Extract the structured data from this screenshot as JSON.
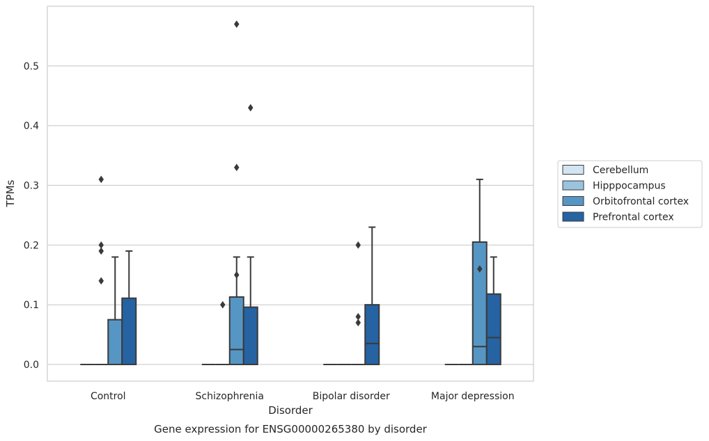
{
  "chart_data": {
    "type": "box",
    "title": "",
    "caption": "Gene expression for ENSG00000265380 by disorder",
    "xlabel": "Disorder",
    "ylabel": "TPMs",
    "ylim": [
      -0.028,
      0.6
    ],
    "yticks": [
      0.0,
      0.1,
      0.2,
      0.3,
      0.4,
      0.5
    ],
    "ytick_labels": [
      "0.0",
      "0.1",
      "0.2",
      "0.3",
      "0.4",
      "0.5"
    ],
    "grid": "horizontal",
    "legend_position": "right",
    "categories": [
      "Control",
      "Schizophrenia",
      "Bipolar disorder",
      "Major depression"
    ],
    "series": [
      {
        "name": "Cerebellum",
        "color": "#d3e4f3",
        "boxes": [
          {
            "q1": 0,
            "median": 0,
            "q3": 0,
            "whisker_low": 0,
            "whisker_high": 0,
            "outliers": []
          },
          {
            "q1": 0,
            "median": 0,
            "q3": 0,
            "whisker_low": 0,
            "whisker_high": 0,
            "outliers": []
          },
          {
            "q1": 0,
            "median": 0,
            "q3": 0,
            "whisker_low": 0,
            "whisker_high": 0,
            "outliers": []
          },
          {
            "q1": 0,
            "median": 0,
            "q3": 0,
            "whisker_low": 0,
            "whisker_high": 0,
            "outliers": []
          }
        ]
      },
      {
        "name": "Hipppocampus",
        "color": "#9ac3de",
        "boxes": [
          {
            "q1": 0,
            "median": 0,
            "q3": 0,
            "whisker_low": 0,
            "whisker_high": 0,
            "outliers": [
              0.31,
              0.14,
              0.2,
              0.19
            ]
          },
          {
            "q1": 0,
            "median": 0,
            "q3": 0,
            "whisker_low": 0,
            "whisker_high": 0,
            "outliers": [
              0.1
            ]
          },
          {
            "q1": 0,
            "median": 0,
            "q3": 0,
            "whisker_low": 0,
            "whisker_high": 0,
            "outliers": []
          },
          {
            "q1": 0,
            "median": 0,
            "q3": 0,
            "whisker_low": 0,
            "whisker_high": 0,
            "outliers": []
          }
        ]
      },
      {
        "name": "Orbitofrontal cortex",
        "color": "#5696c4",
        "boxes": [
          {
            "q1": 0,
            "median": 0,
            "q3": 0.075,
            "whisker_low": 0,
            "whisker_high": 0.18,
            "outliers": []
          },
          {
            "q1": 0,
            "median": 0.025,
            "q3": 0.113,
            "whisker_low": 0,
            "whisker_high": 0.18,
            "outliers": [
              0.57,
              0.33,
              0.15
            ]
          },
          {
            "q1": 0,
            "median": 0,
            "q3": 0,
            "whisker_low": 0,
            "whisker_high": 0,
            "outliers": [
              0.2,
              0.08,
              0.07
            ]
          },
          {
            "q1": 0,
            "median": 0.03,
            "q3": 0.205,
            "whisker_low": 0,
            "whisker_high": 0.31,
            "outliers": [
              0.16
            ]
          }
        ]
      },
      {
        "name": "Prefrontal cortex",
        "color": "#2563a3",
        "boxes": [
          {
            "q1": 0,
            "median": 0,
            "q3": 0.111,
            "whisker_low": 0,
            "whisker_high": 0.19,
            "outliers": []
          },
          {
            "q1": 0,
            "median": 0,
            "q3": 0.096,
            "whisker_low": 0,
            "whisker_high": 0.18,
            "outliers": [
              0.43
            ]
          },
          {
            "q1": 0,
            "median": 0.035,
            "q3": 0.1,
            "whisker_low": 0,
            "whisker_high": 0.23,
            "outliers": []
          },
          {
            "q1": 0,
            "median": 0.045,
            "q3": 0.118,
            "whisker_low": 0,
            "whisker_high": 0.18,
            "outliers": []
          }
        ]
      }
    ]
  }
}
